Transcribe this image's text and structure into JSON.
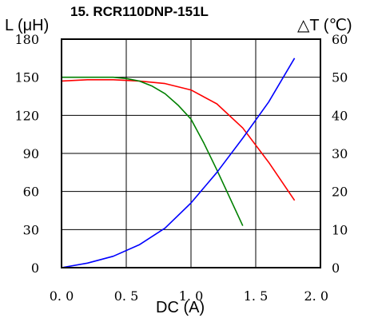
{
  "chart_data": {
    "type": "line",
    "title": "15. RCR110DNP-151L",
    "xlabel": "DC (A)",
    "ylabel_left": "L (μH)",
    "ylabel_right": "△T (℃)",
    "xlim": [
      0,
      2.0
    ],
    "ylim_left": [
      0,
      180
    ],
    "ylim_right": [
      0,
      60
    ],
    "x_ticks": [
      "0. 0",
      "0. 5",
      "1. 0",
      "1. 5",
      "2. 0"
    ],
    "y_ticks_left": [
      "0",
      "30",
      "60",
      "90",
      "120",
      "150",
      "180"
    ],
    "y_ticks_right": [
      "0",
      "10",
      "20",
      "30",
      "40",
      "50",
      "60"
    ],
    "grid": true,
    "series": [
      {
        "color": "#ff0000",
        "axis": "left",
        "x": [
          0,
          0.2,
          0.4,
          0.6,
          0.8,
          1.0,
          1.2,
          1.4,
          1.6,
          1.8
        ],
        "y": [
          147,
          148,
          148,
          147,
          145,
          140,
          129,
          110,
          83,
          53
        ]
      },
      {
        "color": "#008000",
        "axis": "left",
        "x": [
          0,
          0.2,
          0.4,
          0.5,
          0.6,
          0.7,
          0.8,
          0.9,
          1.0,
          1.1,
          1.2,
          1.3,
          1.4
        ],
        "y": [
          150,
          150,
          150,
          149,
          147,
          143,
          137,
          128,
          117,
          98,
          77,
          55,
          33
        ]
      },
      {
        "color": "#0000ff",
        "axis": "right",
        "x": [
          0,
          0.2,
          0.4,
          0.6,
          0.8,
          1.0,
          1.2,
          1.4,
          1.6,
          1.8
        ],
        "y": [
          0,
          1.2,
          3,
          6,
          10.4,
          17,
          25,
          34,
          43.5,
          55
        ]
      }
    ]
  }
}
